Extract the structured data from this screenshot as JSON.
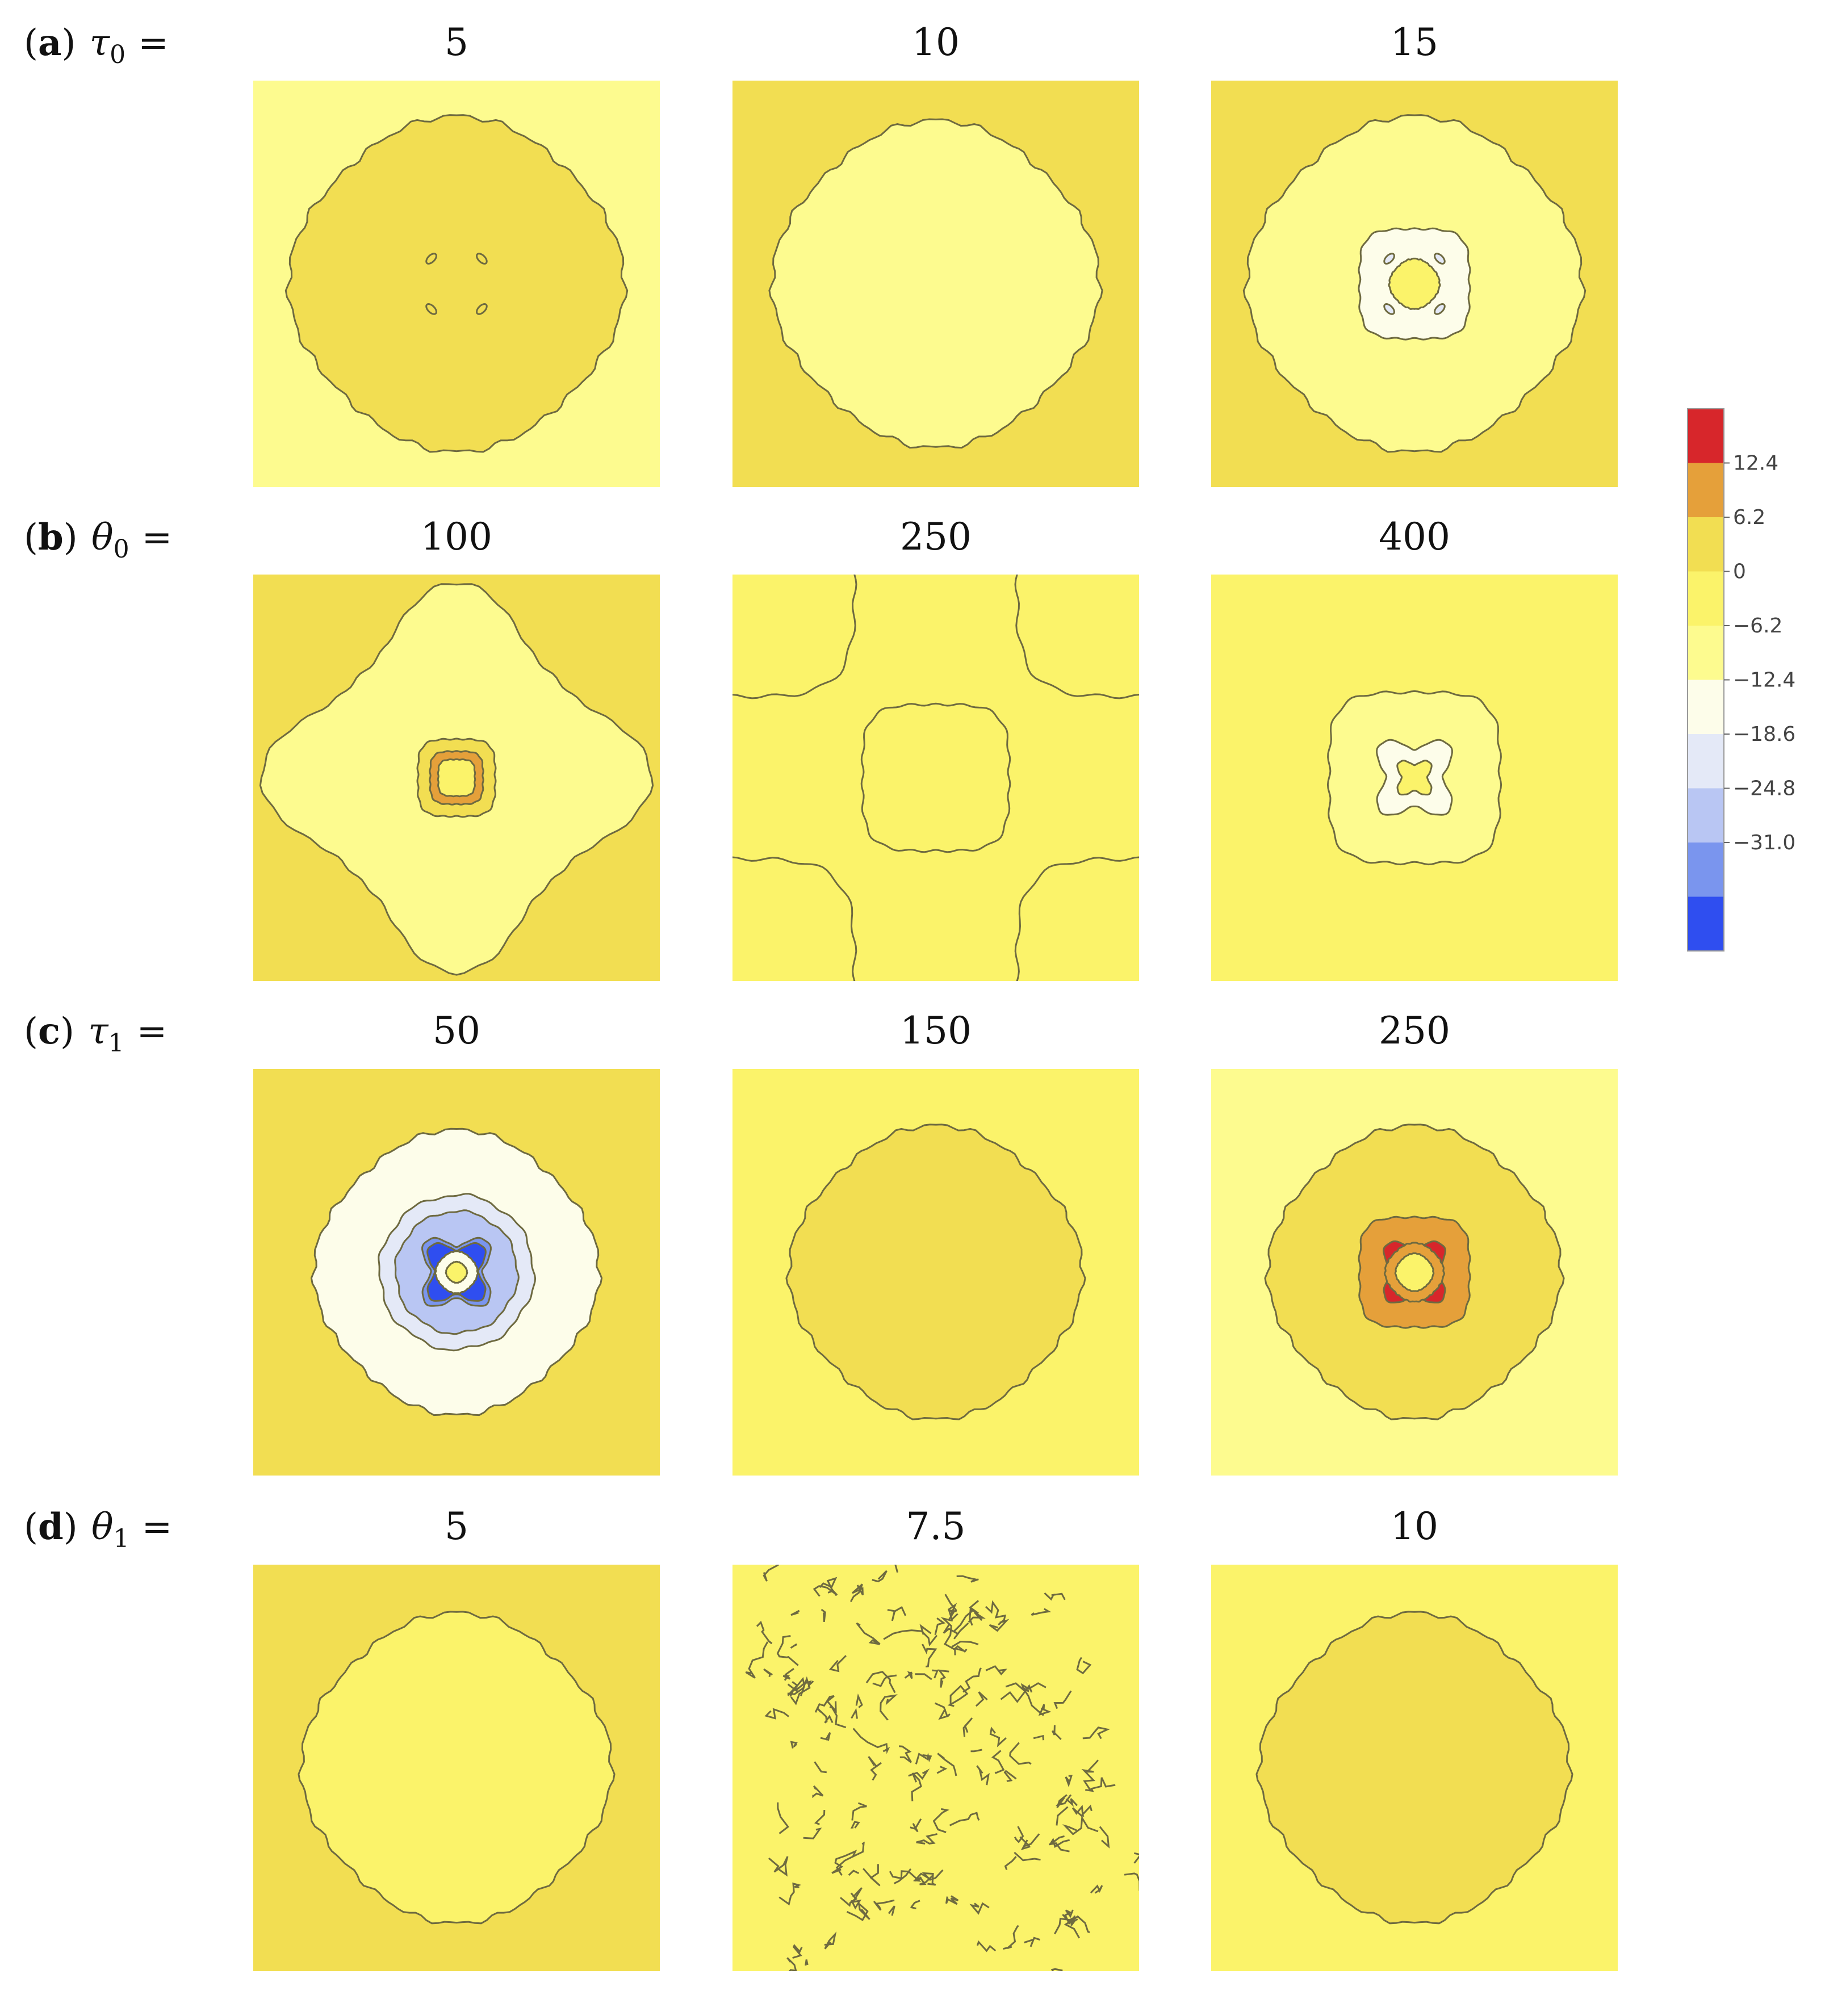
{
  "chart_data": {
    "type": "heatmap",
    "title": "",
    "description_key": "contour",
    "colorbar": {
      "tick_labels": [
        "12.4",
        "6.2",
        "0",
        "−6.2",
        "−12.4",
        "−18.6",
        "−24.8",
        "−31.0"
      ],
      "levels": [
        {
          "name": "red",
          "color": "#d7262b"
        },
        {
          "name": "orange",
          "color": "#e5a03a"
        },
        {
          "name": "gold",
          "color": "#f2de52"
        },
        {
          "name": "yellow",
          "color": "#fbf36a"
        },
        {
          "name": "pale-yellow",
          "color": "#fdfb8f"
        },
        {
          "name": "cream",
          "color": "#fdfdea"
        },
        {
          "name": "pale-blue",
          "color": "#e4e9f7"
        },
        {
          "name": "light-blue",
          "color": "#b9c6f3"
        },
        {
          "name": "mid-blue",
          "color": "#7a95ee"
        },
        {
          "name": "blue",
          "color": "#2f4ef0"
        }
      ]
    },
    "rows": [
      {
        "label_prefix": "(",
        "label_letter": "a",
        "label_suffix": ") ",
        "param_symbol": "τ",
        "param_sub": "0",
        "equals": "=",
        "panels": [
          {
            "value": "5",
            "background": "pale-yellow",
            "rings": [
              {
                "shape": "diamond",
                "r": 0.4,
                "color": "gold"
              }
            ],
            "spots": {
              "color": "gold",
              "outline": true
            }
          },
          {
            "value": "10",
            "background": "gold",
            "rings": [
              {
                "shape": "diamond",
                "r": 0.39,
                "color": "pale-yellow"
              }
            ]
          },
          {
            "value": "15",
            "background": "gold",
            "rings": [
              {
                "shape": "diamond",
                "r": 0.4,
                "color": "pale-yellow"
              },
              {
                "shape": "square",
                "r": 0.135,
                "color": "cream"
              },
              {
                "shape": "diamond",
                "r": 0.06,
                "color": "yellow"
              }
            ],
            "spots": {
              "color": "pale-blue",
              "outline": true
            }
          }
        ]
      },
      {
        "label_prefix": "(",
        "label_letter": "b",
        "label_suffix": ") ",
        "param_symbol": "θ",
        "param_sub": "0",
        "equals": "=",
        "panels": [
          {
            "value": "100",
            "background": "gold",
            "rings": [
              {
                "shape": "star",
                "r": 0.48,
                "color": "pale-yellow"
              },
              {
                "shape": "square",
                "r": 0.095,
                "color": "gold"
              },
              {
                "shape": "square",
                "r": 0.065,
                "color": "orange"
              },
              {
                "shape": "square",
                "r": 0.045,
                "color": "yellow"
              }
            ]
          },
          {
            "value": "250",
            "background": "yellow",
            "rings": [
              {
                "shape": "square",
                "r": 0.18,
                "color": "yellow"
              }
            ],
            "corners": true
          },
          {
            "value": "400",
            "background": "yellow",
            "rings": [
              {
                "shape": "square",
                "r": 0.21,
                "color": "pale-yellow"
              },
              {
                "shape": "clover",
                "r": 0.11,
                "color": "cream"
              },
              {
                "shape": "clover",
                "r": 0.05,
                "color": "yellow"
              }
            ]
          }
        ]
      },
      {
        "label_prefix": "(",
        "label_letter": "c",
        "label_suffix": ") ",
        "param_symbol": "τ",
        "param_sub": "1",
        "equals": "=",
        "panels": [
          {
            "value": "50",
            "background": "gold",
            "rings": [
              {
                "shape": "diamond",
                "r": 0.34,
                "color": "cream"
              },
              {
                "shape": "circle",
                "r": 0.19,
                "color": "pale-blue"
              },
              {
                "shape": "circle",
                "r": 0.15,
                "color": "light-blue"
              },
              {
                "shape": "clover",
                "r": 0.1,
                "color": "mid-blue"
              },
              {
                "shape": "clover",
                "r": 0.085,
                "color": "blue"
              },
              {
                "shape": "diamond",
                "r": 0.05,
                "color": "cream"
              },
              {
                "shape": "diamond",
                "r": 0.025,
                "color": "yellow"
              }
            ]
          },
          {
            "value": "150",
            "background": "yellow",
            "rings": [
              {
                "shape": "diamond",
                "r": 0.35,
                "color": "gold"
              }
            ]
          },
          {
            "value": "250",
            "background": "pale-yellow",
            "rings": [
              {
                "shape": "diamond",
                "r": 0.35,
                "color": "gold"
              },
              {
                "shape": "square",
                "r": 0.135,
                "color": "orange"
              },
              {
                "shape": "clover",
                "r": 0.09,
                "color": "red"
              },
              {
                "shape": "diamond",
                "r": 0.07,
                "color": "orange"
              },
              {
                "shape": "diamond",
                "r": 0.045,
                "color": "yellow"
              }
            ]
          }
        ]
      },
      {
        "label_prefix": "(",
        "label_letter": "d",
        "label_suffix": ") ",
        "param_symbol": "θ",
        "param_sub": "1",
        "equals": "=",
        "panels": [
          {
            "value": "5",
            "background": "gold",
            "rings": [
              {
                "shape": "diamond",
                "r": 0.37,
                "color": "yellow"
              }
            ]
          },
          {
            "value": "7.5",
            "background": "yellow",
            "rings": [],
            "noise": true
          },
          {
            "value": "10",
            "background": "yellow",
            "rings": [
              {
                "shape": "diamond",
                "r": 0.37,
                "color": "gold"
              }
            ]
          }
        ]
      }
    ]
  }
}
